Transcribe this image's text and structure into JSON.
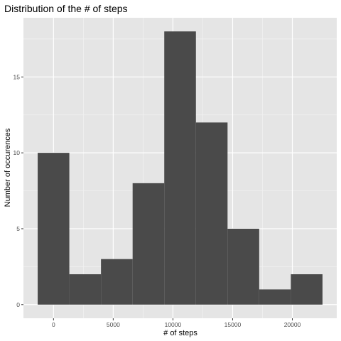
{
  "chart_data": {
    "type": "bar",
    "title": "Distribution of the # of steps",
    "xlabel": "# of steps",
    "ylabel": "Number of occurences",
    "bins": [
      {
        "x0": -1325,
        "x1": 1325,
        "count": 10
      },
      {
        "x0": 1325,
        "x1": 3975,
        "count": 2
      },
      {
        "x0": 3975,
        "x1": 6625,
        "count": 3
      },
      {
        "x0": 6625,
        "x1": 9275,
        "count": 8
      },
      {
        "x0": 9275,
        "x1": 11925,
        "count": 18
      },
      {
        "x0": 11925,
        "x1": 14575,
        "count": 12
      },
      {
        "x0": 14575,
        "x1": 17225,
        "count": 5
      },
      {
        "x0": 17225,
        "x1": 19875,
        "count": 1
      },
      {
        "x0": 19875,
        "x1": 22525,
        "count": 2
      }
    ],
    "xticks": [
      0,
      5000,
      10000,
      15000,
      20000
    ],
    "xtick_labels": [
      "0",
      "5000",
      "10000",
      "15000",
      "20000"
    ],
    "yticks": [
      0,
      5,
      10,
      15
    ],
    "ytick_labels": [
      "0",
      "5",
      "10",
      "15"
    ],
    "xlim": [
      -2517.5,
      23717.5
    ],
    "ylim": [
      -0.9,
      18.9
    ],
    "grid": true,
    "colors": {
      "bar": "#4a4a4a",
      "panel": "#e5e5e5",
      "grid_major": "#ffffff",
      "grid_minor": "#f2f2f2"
    }
  }
}
